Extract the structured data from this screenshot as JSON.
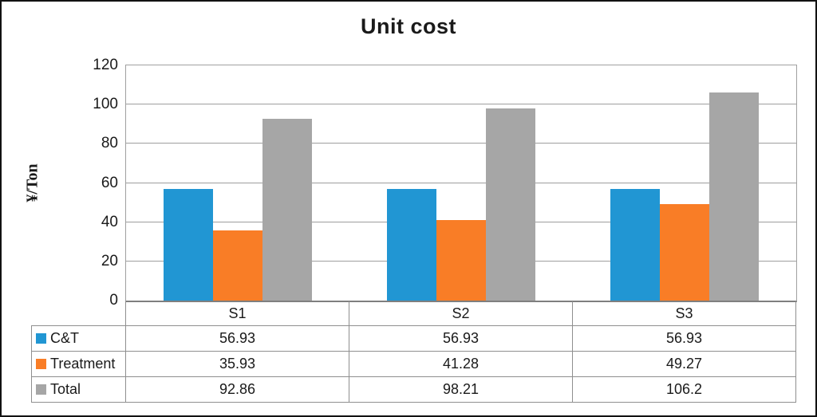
{
  "chart_data": {
    "type": "bar",
    "title": "Unit cost",
    "ylabel": "¥/Ton",
    "xlabel": "",
    "categories": [
      "S1",
      "S2",
      "S3"
    ],
    "series": [
      {
        "name": "C&T",
        "color": "#2196D3",
        "values": [
          56.93,
          56.93,
          56.93
        ]
      },
      {
        "name": "Treatment",
        "color": "#F97D26",
        "values": [
          35.93,
          41.28,
          49.27
        ]
      },
      {
        "name": "Total",
        "color": "#A6A6A6",
        "values": [
          92.86,
          98.21,
          106.2
        ]
      }
    ],
    "ylim": [
      0,
      120
    ],
    "ytick_step": 20,
    "yticks": [
      0,
      20,
      40,
      60,
      80,
      100,
      120
    ],
    "grid": true,
    "legend_position": "data-table-left",
    "data_table_shown": true
  }
}
